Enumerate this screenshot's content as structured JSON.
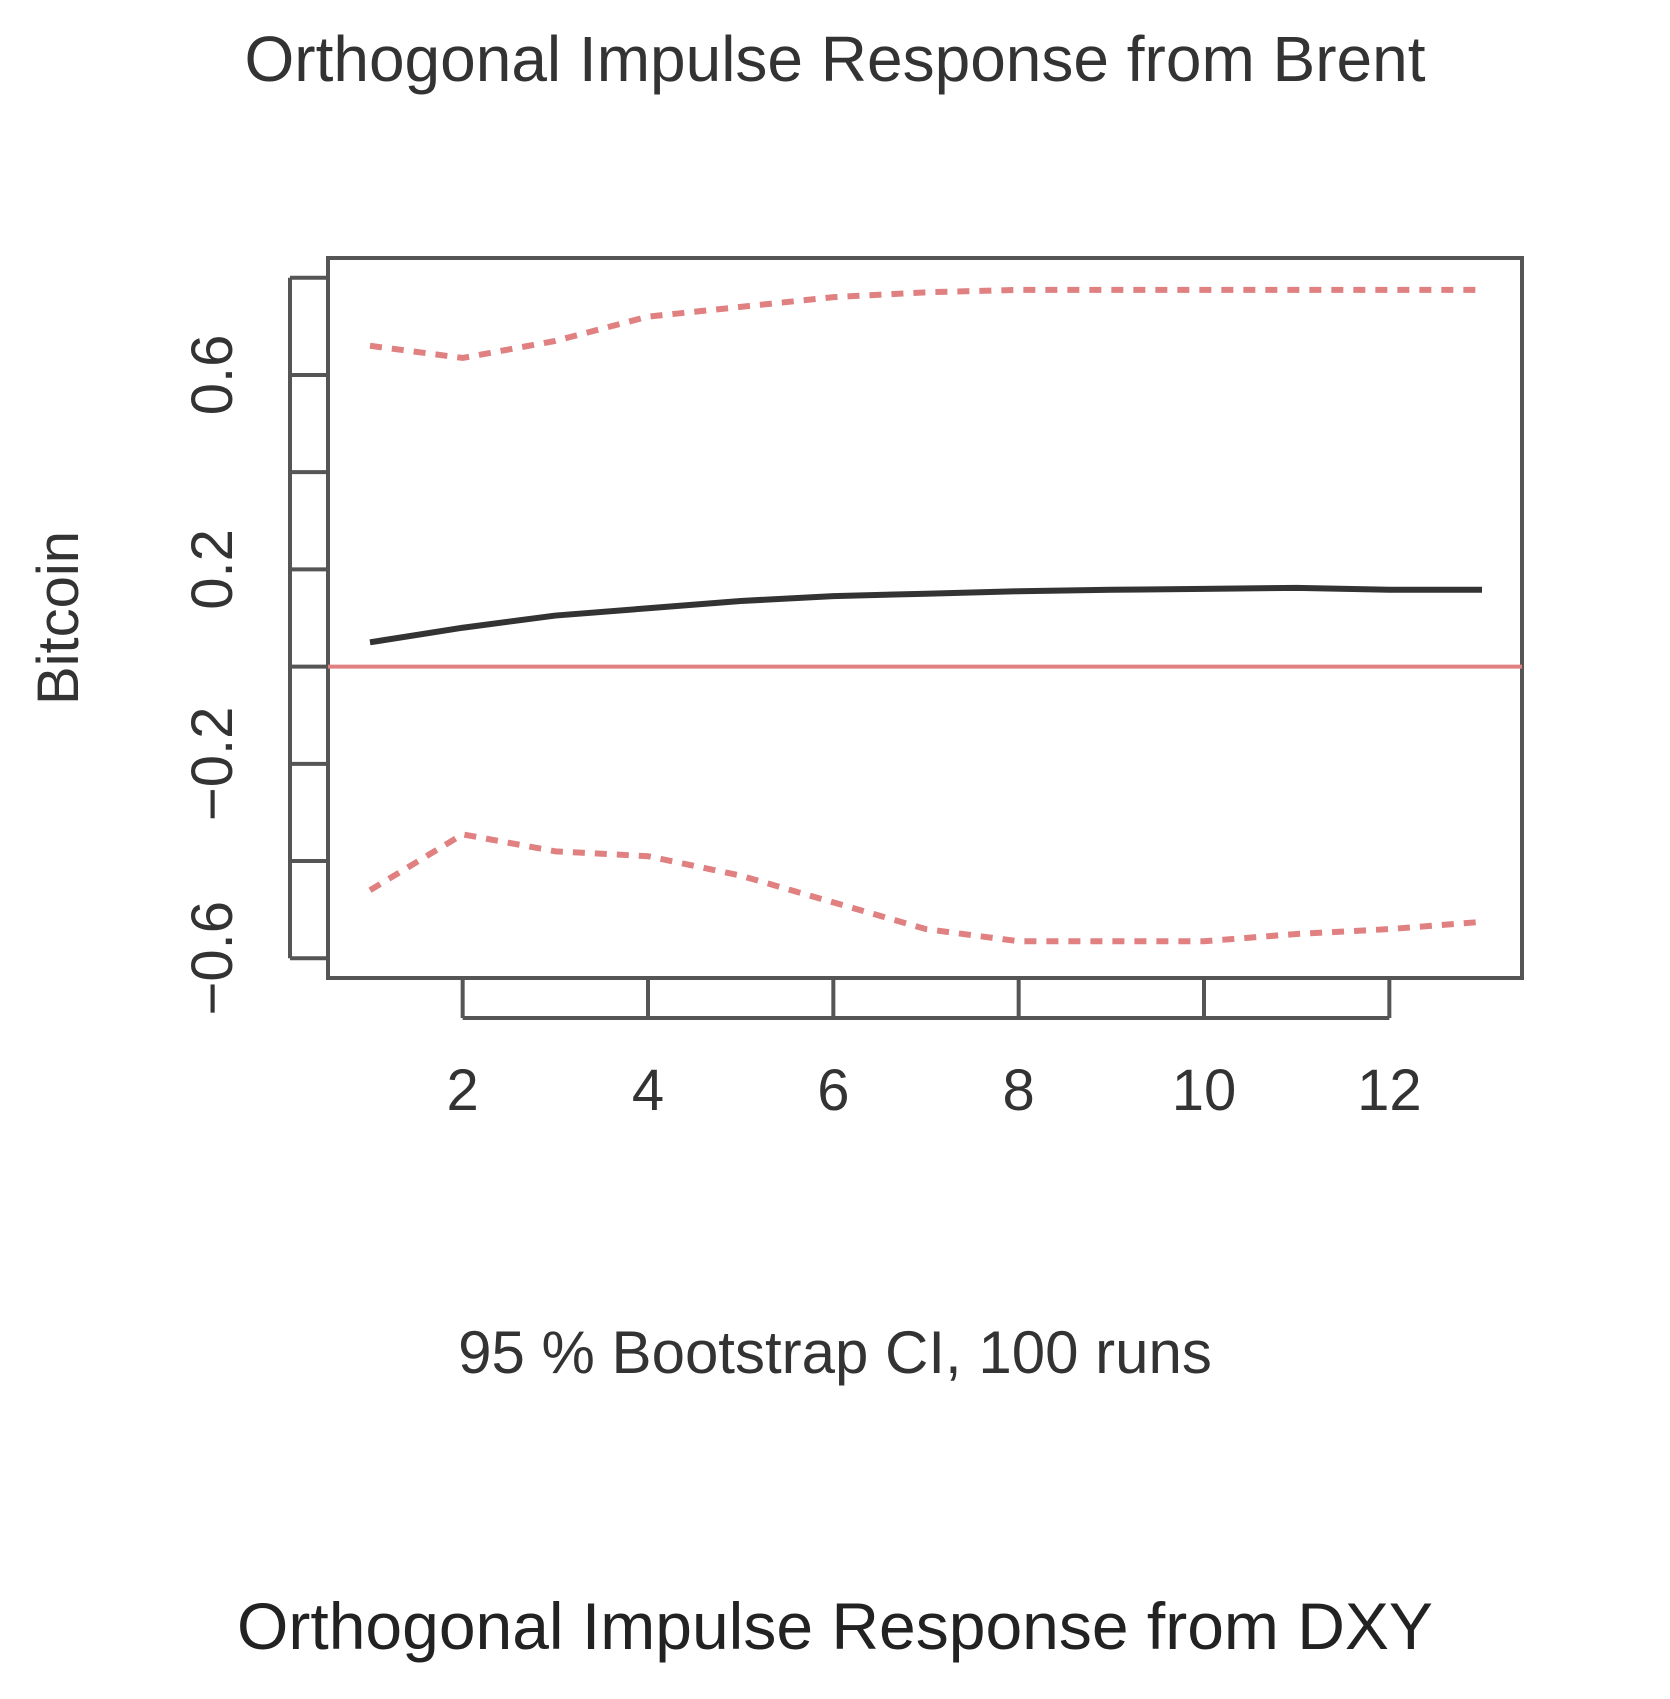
{
  "chart_data": [
    {
      "type": "line",
      "title": "Orthogonal Impulse Response from Brent",
      "ylabel": "Bitcoin",
      "xlabel": "95 % Bootstrap CI,  100 runs",
      "x": [
        1,
        2,
        3,
        4,
        5,
        6,
        7,
        8,
        9,
        10,
        11,
        12,
        13
      ],
      "xlim": [
        1,
        13
      ],
      "ylim": [
        -0.62,
        0.82
      ],
      "xticks": [
        2,
        4,
        6,
        8,
        10,
        12
      ],
      "xtick_labels": [
        "2",
        "4",
        "6",
        "8",
        "10",
        "12"
      ],
      "yticks": [
        -0.6,
        -0.4,
        -0.2,
        0,
        0.2,
        0.4,
        0.6,
        0.8
      ],
      "ytick_labels": [
        "-0.6",
        "",
        "-0.2",
        "",
        "0.2",
        "",
        "0.6",
        ""
      ],
      "zero_line": 0,
      "series": [
        {
          "role": "response",
          "style": "solid",
          "color": "#333333",
          "values": [
            0.05,
            0.08,
            0.105,
            0.12,
            0.135,
            0.145,
            0.15,
            0.155,
            0.158,
            0.16,
            0.162,
            0.158,
            0.158
          ]
        },
        {
          "role": "upper",
          "style": "dotted",
          "color": "#e08080",
          "values": [
            0.66,
            0.635,
            0.67,
            0.72,
            0.74,
            0.76,
            0.77,
            0.775,
            0.775,
            0.775,
            0.775,
            0.775,
            0.775
          ]
        },
        {
          "role": "lower",
          "style": "dotted",
          "color": "#e08080",
          "values": [
            -0.46,
            -0.345,
            -0.38,
            -0.39,
            -0.43,
            -0.485,
            -0.54,
            -0.565,
            -0.565,
            -0.565,
            -0.55,
            -0.54,
            -0.525
          ]
        }
      ]
    },
    {
      "type": "line",
      "title": "Orthogonal Impulse Response from DXY"
    }
  ]
}
